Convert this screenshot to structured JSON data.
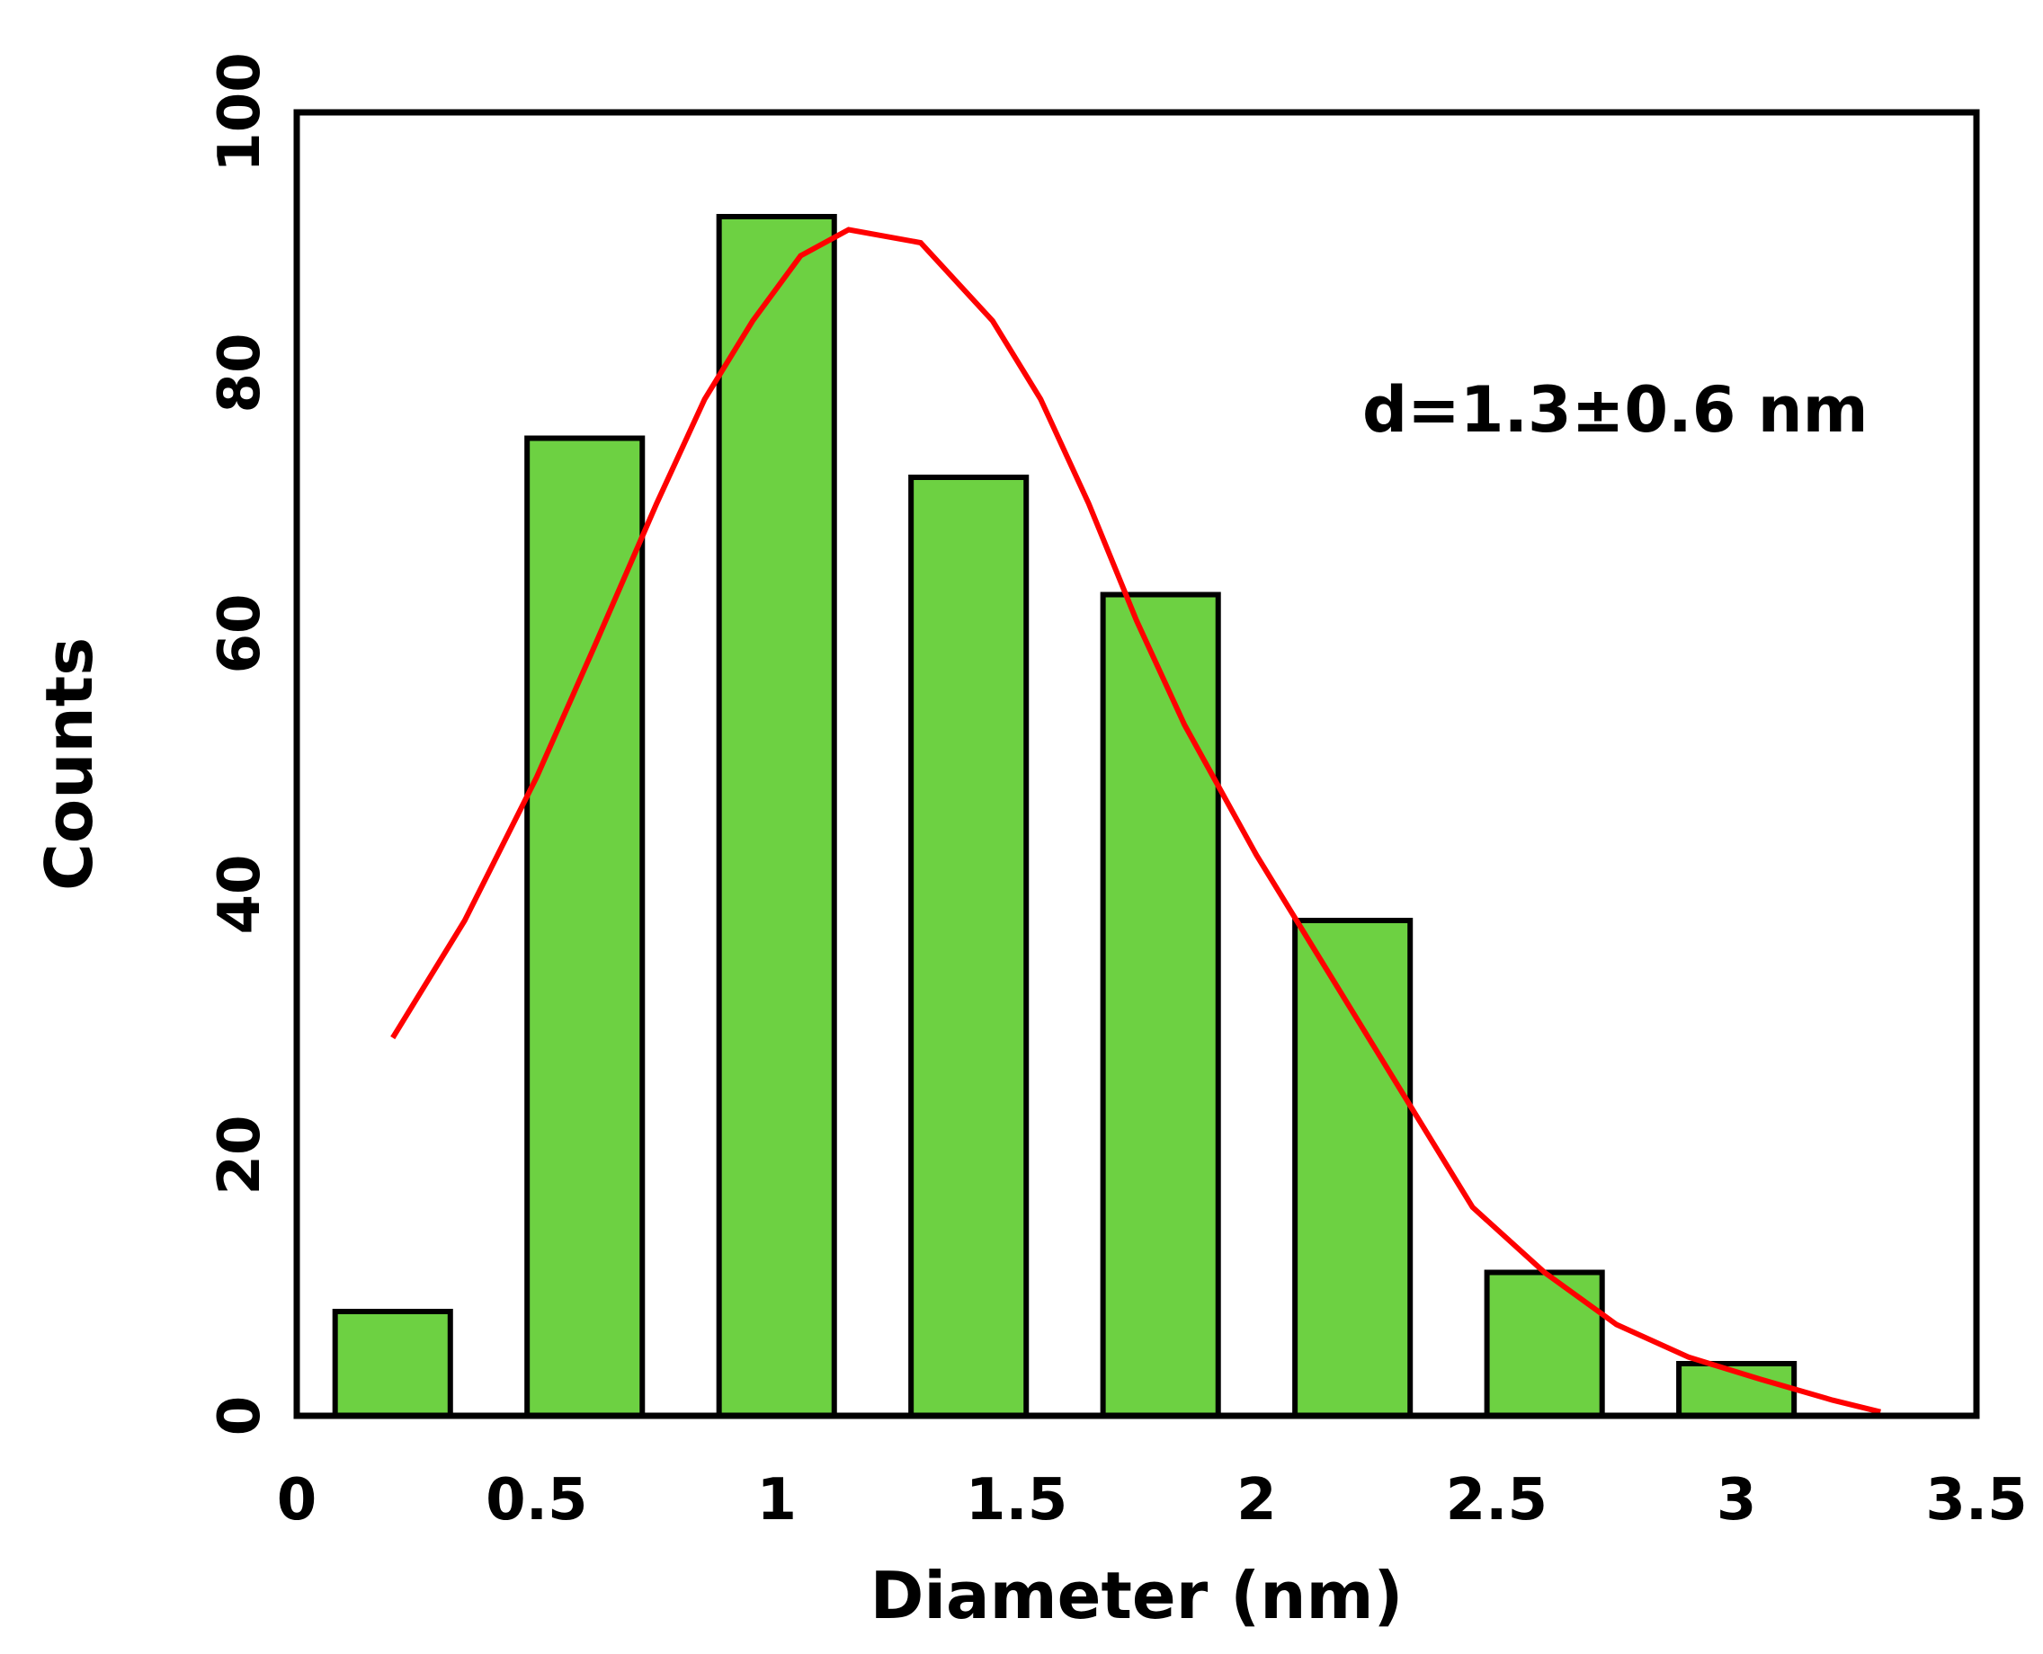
{
  "chart_data": {
    "type": "bar",
    "title": "",
    "xlabel": "Diameter (nm)",
    "ylabel": "Counts",
    "xlim": [
      0,
      3.5
    ],
    "ylim": [
      0,
      100
    ],
    "xticks": [
      "0",
      "0.5",
      "1",
      "1.5",
      "2",
      "2.5",
      "3",
      "3.5"
    ],
    "yticks": [
      "0",
      "20",
      "40",
      "60",
      "80",
      "100"
    ],
    "grid": false,
    "bars": [
      {
        "x": 0.2,
        "value": 8
      },
      {
        "x": 0.6,
        "value": 75
      },
      {
        "x": 1.0,
        "value": 92
      },
      {
        "x": 1.4,
        "value": 72
      },
      {
        "x": 1.8,
        "value": 63
      },
      {
        "x": 2.2,
        "value": 38
      },
      {
        "x": 2.6,
        "value": 11
      },
      {
        "x": 3.0,
        "value": 4
      }
    ],
    "bar_width": 0.24,
    "bar_color": "#6dd142",
    "fit_curve": {
      "color": "#ff0000",
      "points": [
        [
          0.2,
          29
        ],
        [
          0.35,
          38
        ],
        [
          0.5,
          49
        ],
        [
          0.62,
          59
        ],
        [
          0.75,
          70
        ],
        [
          0.85,
          78
        ],
        [
          0.95,
          84
        ],
        [
          1.05,
          89
        ],
        [
          1.15,
          91
        ],
        [
          1.3,
          90
        ],
        [
          1.45,
          84
        ],
        [
          1.55,
          78
        ],
        [
          1.65,
          70
        ],
        [
          1.75,
          61
        ],
        [
          1.85,
          53
        ],
        [
          2.0,
          43
        ],
        [
          2.1,
          37
        ],
        [
          2.3,
          25
        ],
        [
          2.45,
          16
        ],
        [
          2.6,
          11
        ],
        [
          2.75,
          7
        ],
        [
          2.9,
          4.5
        ],
        [
          3.05,
          2.8
        ],
        [
          3.2,
          1.2
        ],
        [
          3.3,
          0.3
        ]
      ]
    },
    "annotation": "d=1.3±0.6 nm"
  }
}
